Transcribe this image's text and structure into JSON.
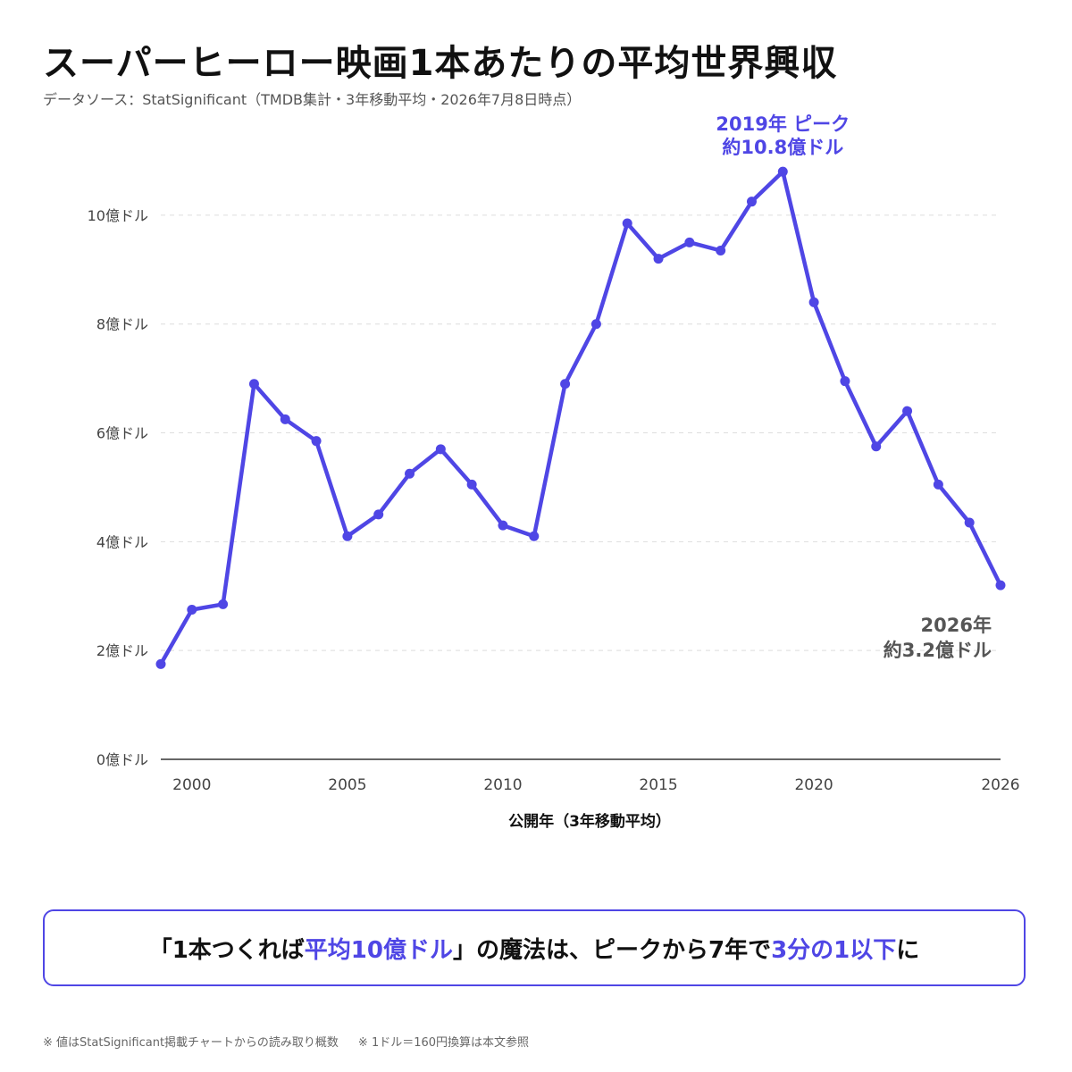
{
  "header": {
    "title": "スーパーヒーロー映画1本あたりの平均世界興収",
    "subtitle": "データソース：StatSignificant（TMDB集計・3年移動平均・2026年7月8日時点）"
  },
  "colors": {
    "accent": "#4f46e5",
    "end_label": "#555555",
    "grid": "#dddddd",
    "axis": "#333333"
  },
  "chart_data": {
    "type": "line",
    "title": "スーパーヒーロー映画1本あたりの平均世界興収",
    "xlabel": "公開年（3年移動平均）",
    "ylabel": "",
    "xlim": [
      1999,
      2026
    ],
    "ylim": [
      0,
      11
    ],
    "x_ticks": [
      2000,
      2005,
      2010,
      2015,
      2020,
      2026
    ],
    "y_ticks": [
      0,
      2,
      4,
      6,
      8,
      10
    ],
    "y_tick_labels": [
      "0億ドル",
      "2億ドル",
      "4億ドル",
      "6億ドル",
      "8億ドル",
      "10億ドル"
    ],
    "grid": "horizontal dashed",
    "series": [
      {
        "x": [
          1999,
          2000,
          2001,
          2002,
          2003,
          2004,
          2005,
          2006,
          2007,
          2008,
          2009,
          2010,
          2011,
          2012,
          2013,
          2014,
          2015,
          2016,
          2017,
          2018,
          2019,
          2020,
          2021,
          2022,
          2023,
          2024,
          2025,
          2026
        ],
        "values": [
          1.75,
          2.75,
          2.85,
          6.9,
          6.25,
          5.85,
          4.1,
          4.5,
          5.25,
          5.7,
          5.05,
          4.3,
          4.1,
          6.9,
          8.0,
          9.85,
          9.2,
          9.5,
          9.35,
          10.25,
          10.8,
          8.4,
          6.95,
          5.75,
          6.4,
          5.05,
          4.35,
          3.2
        ]
      }
    ],
    "annotations": {
      "peak": {
        "x": 2019,
        "y": 10.8,
        "line1": "2019年 ピーク",
        "line2": "約10.8億ドル"
      },
      "end": {
        "x": 2026,
        "y": 3.2,
        "line1": "2026年",
        "line2": "約3.2億ドル"
      }
    }
  },
  "callout": {
    "part1": "「1本つくれば",
    "part2": "平均10億ドル",
    "part3": "」の魔法は、ピークから7年で",
    "part4": "3分の1以下",
    "part5": "に"
  },
  "footnote": {
    "note1": "※ 値はStatSignificant掲載チャートからの読み取り概数",
    "note2": "※ 1ドル＝160円換算は本文参照"
  }
}
